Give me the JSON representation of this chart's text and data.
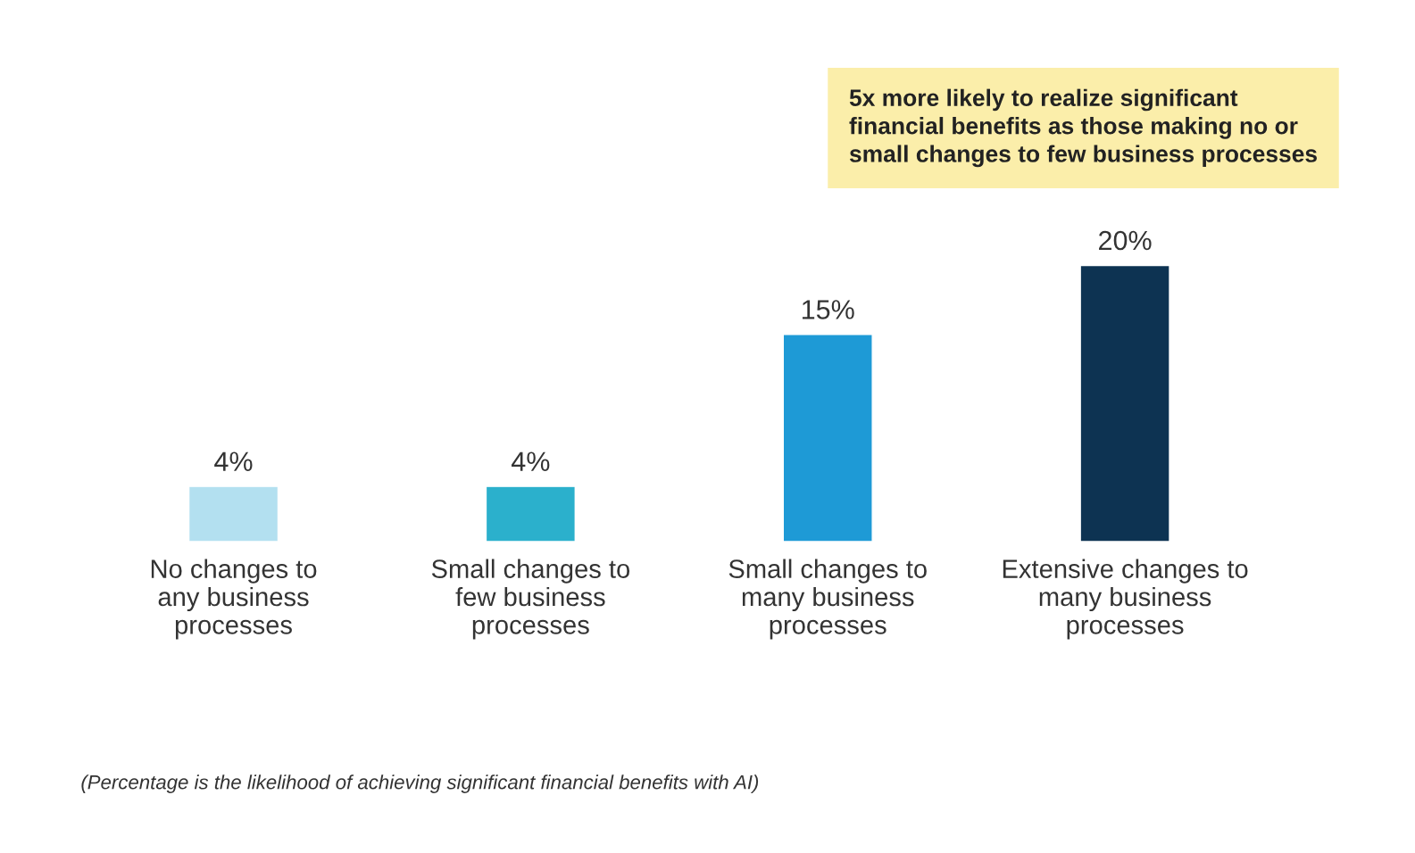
{
  "chart_data": {
    "type": "bar",
    "categories": [
      "No changes to\nany business\nprocesses",
      "Small changes to\nfew business\nprocesses",
      "Small changes to\nmany business\nprocesses",
      "Extensive changes to\nmany business\nprocesses"
    ],
    "values": [
      4,
      4,
      15,
      20
    ],
    "colors": [
      "#b3e0f0",
      "#2bb0cc",
      "#1e9ad6",
      "#0d3352"
    ],
    "value_labels": [
      "4%",
      "4%",
      "15%",
      "20%"
    ],
    "annotations": [
      "5x more likely to realize significant\nfinancial benefits as those making no or\nsmall changes to few business processes",
      "(Percentage is the likelihood of achieving significant financial benefits with AI)"
    ],
    "grid": false,
    "legend": false
  }
}
